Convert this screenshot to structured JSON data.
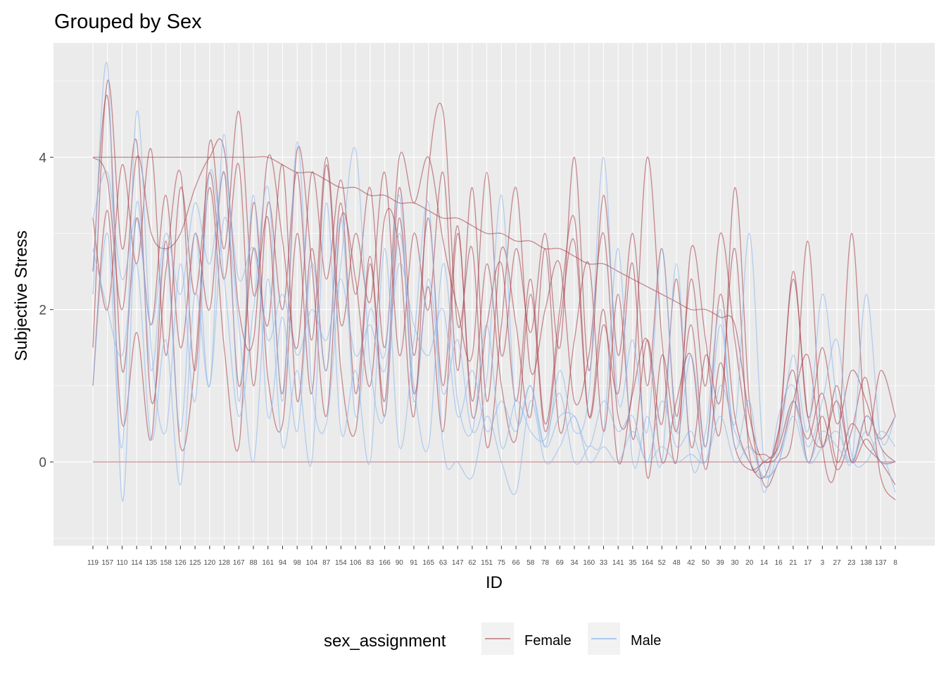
{
  "chart_data": {
    "type": "line",
    "title": "Grouped by Sex",
    "xlabel": "ID",
    "ylabel": "Subjective Stress",
    "ylim": [
      -1.1,
      5.5
    ],
    "yticks": [
      0,
      2,
      4
    ],
    "grid": true,
    "categories": [
      "119",
      "157",
      "110",
      "114",
      "135",
      "158",
      "126",
      "125",
      "120",
      "128",
      "167",
      "88",
      "161",
      "94",
      "98",
      "104",
      "87",
      "154",
      "106",
      "83",
      "166",
      "90",
      "91",
      "165",
      "63",
      "147",
      "62",
      "151",
      "75",
      "66",
      "58",
      "78",
      "69",
      "34",
      "160",
      "33",
      "141",
      "35",
      "164",
      "52",
      "48",
      "42",
      "50",
      "39",
      "30",
      "20",
      "14",
      "16",
      "21",
      "17",
      "3",
      "27",
      "23",
      "138",
      "137",
      "8"
    ],
    "legend": {
      "title": "sex_assignment",
      "position": "bottom",
      "entries": [
        {
          "label": "Female",
          "color": "#A8434E"
        },
        {
          "label": "Male",
          "color": "#8DB8EE"
        }
      ]
    },
    "series": [
      {
        "name": "Female",
        "color": "#A8434E",
        "values": [
          4.0,
          3.7,
          2.0,
          4.0,
          3.0,
          2.8,
          3.0,
          3.6,
          4.0,
          4.1,
          2.0,
          1.6,
          4.0,
          2.9,
          1.5,
          3.8,
          2.4,
          3.7,
          2.2,
          3.6,
          1.5,
          4.0,
          3.4,
          4.0,
          2.9,
          2.0,
          1.4,
          3.8,
          1.4,
          2.8,
          1.7,
          3.0,
          1.5,
          4.0,
          1.2,
          3.5,
          1.4,
          3.0,
          1.0,
          2.8,
          0.6,
          2.4,
          1.0,
          3.0,
          1.6,
          0.3,
          0.1,
          0.3,
          2.5,
          0.6,
          1.5,
          0.5,
          1.2,
          0.8,
          0.2,
          0.0
        ]
      },
      {
        "name": "Female",
        "color": "#A8434E",
        "values": [
          2.5,
          4.8,
          1.2,
          3.2,
          1.8,
          3.5,
          1.5,
          3.0,
          2.0,
          3.8,
          1.0,
          2.8,
          1.8,
          3.9,
          0.8,
          2.8,
          1.2,
          3.4,
          0.9,
          2.7,
          0.8,
          3.6,
          1.4,
          3.2,
          1.0,
          3.1,
          0.6,
          1.8,
          2.6,
          0.8,
          2.4,
          0.5,
          2.0,
          3.2,
          0.6,
          1.8,
          0.9,
          2.6,
          -0.2,
          1.4,
          0.4,
          1.8,
          0.2,
          2.2,
          0.6,
          0.0,
          -0.2,
          0.4,
          1.2,
          0.0,
          0.6,
          -0.1,
          0.4,
          1.1,
          -0.2,
          -0.5
        ]
      },
      {
        "name": "Female",
        "color": "#A8434E",
        "values": [
          3.2,
          2.0,
          3.9,
          2.6,
          4.1,
          1.4,
          3.6,
          2.2,
          3.8,
          2.4,
          3.9,
          1.0,
          3.4,
          2.0,
          3.8,
          1.6,
          4.0,
          1.8,
          3.0,
          2.1,
          3.8,
          1.4,
          3.0,
          2.0,
          3.8,
          1.2,
          3.6,
          0.8,
          2.8,
          1.8,
          0.6,
          2.8,
          0.4,
          1.6,
          2.6,
          0.4,
          2.2,
          0.3,
          1.6,
          0.5,
          2.4,
          0.2,
          1.4,
          0.8,
          2.8,
          0.1,
          0.0,
          0.1,
          0.8,
          1.4,
          0.2,
          1.0,
          0.0,
          0.6,
          0.3,
          0.6
        ]
      },
      {
        "name": "Female",
        "color": "#A8434E",
        "values": [
          1.5,
          5.0,
          2.8,
          4.2,
          0.8,
          2.5,
          3.8,
          1.2,
          4.2,
          2.8,
          4.6,
          2.2,
          3.2,
          0.9,
          4.1,
          2.6,
          0.6,
          3.2,
          2.4,
          1.0,
          3.2,
          2.8,
          0.6,
          3.8,
          4.6,
          1.8,
          2.8,
          0.2,
          1.8,
          3.6,
          1.2,
          2.0,
          2.6,
          0.8,
          1.4,
          3.0,
          0.6,
          1.0,
          4.0,
          1.6,
          0.0,
          2.8,
          1.6,
          0.4,
          3.6,
          0.8,
          -0.3,
          0.0,
          0.4,
          2.9,
          0.2,
          0.0,
          3.0,
          0.4,
          1.2,
          0.6
        ]
      },
      {
        "name": "Female",
        "color": "#A8434E",
        "values": [
          0.0,
          0.0,
          0.0,
          0.0,
          0.0,
          0.0,
          0.0,
          0.0,
          0.0,
          0.0,
          0.0,
          0.0,
          0.0,
          0.0,
          0.0,
          0.0,
          0.0,
          0.0,
          0.0,
          0.0,
          0.0,
          0.0,
          0.0,
          0.0,
          0.0,
          0.0,
          0.0,
          0.0,
          0.0,
          0.0,
          0.0,
          0.0,
          0.0,
          0.0,
          0.0,
          0.0,
          0.0,
          0.0,
          0.0,
          0.0,
          0.0,
          0.0,
          0.0,
          0.0,
          0.0,
          0.0,
          0.0,
          0.0,
          0.0,
          0.0,
          0.0,
          0.0,
          0.0,
          0.0,
          0.0,
          0.0
        ]
      },
      {
        "name": "Female",
        "color": "#A8434E",
        "values": [
          4.0,
          4.0,
          4.0,
          4.0,
          4.0,
          4.0,
          4.0,
          4.0,
          4.0,
          4.0,
          4.0,
          4.0,
          4.0,
          3.9,
          3.8,
          3.8,
          3.7,
          3.6,
          3.6,
          3.5,
          3.5,
          3.4,
          3.4,
          3.3,
          3.2,
          3.2,
          3.1,
          3.0,
          3.0,
          2.9,
          2.9,
          2.8,
          2.8,
          2.7,
          2.6,
          2.6,
          2.5,
          2.4,
          2.3,
          2.2,
          2.1,
          2.0,
          2.0,
          1.9,
          1.8,
          0.6,
          0.0,
          0.4,
          2.4,
          0.6,
          0.2,
          0.8,
          0.0,
          0.3,
          0.0,
          0.0
        ]
      },
      {
        "name": "Female",
        "color": "#A8434E",
        "values": [
          1.0,
          3.3,
          0.5,
          1.7,
          0.3,
          2.9,
          0.2,
          1.3,
          3.6,
          1.5,
          0.2,
          3.4,
          1.1,
          0.5,
          3.0,
          0.9,
          3.9,
          1.2,
          0.4,
          2.6,
          0.6,
          3.2,
          0.9,
          2.3,
          0.4,
          3.0,
          0.8,
          2.6,
          1.0,
          0.3,
          2.2,
          0.4,
          1.8,
          2.9,
          0.6,
          2.0,
          0.0,
          0.9,
          1.6,
          0.0,
          0.8,
          1.4,
          -0.1,
          1.3,
          0.2,
          -0.1,
          0.0,
          0.2,
          0.8,
          0.3,
          0.9,
          0.0,
          0.5,
          0.2,
          0.0,
          -0.3
        ]
      },
      {
        "name": "Male",
        "color": "#8DB8EE",
        "values": [
          2.2,
          5.2,
          -0.5,
          3.4,
          1.2,
          2.8,
          0.4,
          3.0,
          1.0,
          4.3,
          0.8,
          3.5,
          0.6,
          1.9,
          0.4,
          2.6,
          1.2,
          3.2,
          0.6,
          2.0,
          1.4,
          3.5,
          0.8,
          2.4,
          0.9,
          1.6,
          0.4,
          1.1,
          3.5,
          0.6,
          1.0,
          0.2,
          1.2,
          0.4,
          0.9,
          4.0,
          0.8,
          1.6,
          0.4,
          2.8,
          0.4,
          1.4,
          0.2,
          1.8,
          0.5,
          3.0,
          0.0,
          0.2,
          1.4,
          0.4,
          2.2,
          0.8,
          0.0,
          2.2,
          0.3,
          0.6
        ]
      },
      {
        "name": "Male",
        "color": "#8DB8EE",
        "values": [
          1.0,
          3.0,
          0.2,
          4.6,
          1.5,
          0.4,
          2.6,
          0.8,
          3.8,
          2.4,
          0.6,
          2.0,
          3.6,
          0.8,
          4.2,
          1.0,
          0.5,
          2.6,
          4.1,
          1.3,
          0.6,
          3.0,
          1.0,
          0.2,
          2.6,
          0.8,
          0.4,
          1.8,
          0.2,
          0.8,
          0.4,
          0.3,
          0.9,
          0.0,
          0.2,
          0.4,
          2.8,
          0.0,
          0.6,
          0.0,
          2.6,
          0.0,
          0.4,
          2.0,
          0.2,
          0.8,
          -0.4,
          0.6,
          1.0,
          0.2,
          0.8,
          1.6,
          0.1,
          0.0,
          0.4,
          0.2
        ]
      },
      {
        "name": "Male",
        "color": "#8DB8EE",
        "values": [
          2.8,
          2.0,
          1.4,
          2.6,
          0.3,
          1.6,
          -0.3,
          2.2,
          1.0,
          3.2,
          1.8,
          0.0,
          2.4,
          0.2,
          1.2,
          0.0,
          3.4,
          0.4,
          1.2,
          0.0,
          2.8,
          0.2,
          1.6,
          3.4,
          0.2,
          0.0,
          -0.2,
          0.6,
          0.0,
          -0.4,
          0.8,
          0.0,
          0.2,
          0.6,
          0.0,
          0.2,
          0.0,
          0.4,
          0.0,
          0.2,
          0.0,
          0.1,
          0.0,
          0.6,
          0.0,
          0.2,
          -0.2,
          0.0,
          0.6,
          0.0,
          0.4,
          0.2,
          0.0,
          0.4,
          0.0,
          0.0
        ]
      },
      {
        "name": "Male",
        "color": "#8DB8EE",
        "values": [
          3.2,
          3.8,
          2.4,
          3.2,
          1.8,
          3.0,
          2.2,
          3.4,
          2.6,
          3.8,
          2.4,
          2.8,
          1.6,
          2.2,
          1.4,
          2.0,
          1.6,
          2.4,
          1.4,
          1.8,
          1.2,
          2.6,
          1.8,
          1.4,
          2.0,
          0.6,
          1.2,
          0.4,
          0.8,
          0.4,
          1.0,
          0.2,
          0.6,
          0.6,
          0.2,
          0.8,
          0.4,
          0.6,
          0.0,
          0.8,
          0.2,
          0.4,
          0.0,
          1.0,
          0.4,
          0.0,
          -0.2,
          0.0,
          0.8,
          0.0,
          0.2,
          0.4,
          0.0,
          0.6,
          0.2,
          -0.4
        ]
      }
    ]
  }
}
